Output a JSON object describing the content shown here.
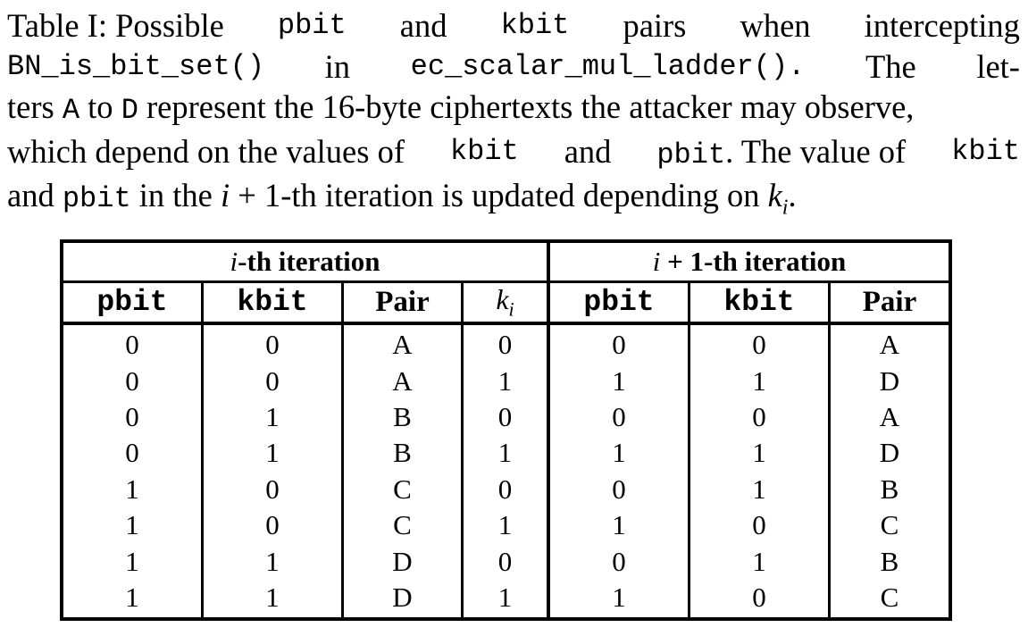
{
  "caption": {
    "label": "Table I:",
    "line1": {
      "w1": "Possible",
      "code1": "pbit",
      "w2": "and",
      "code2": "kbit",
      "w3": "pairs",
      "w4": "when",
      "w5": "intercepting"
    },
    "line2": {
      "code1": "BN_is_bit_set()",
      "w1": "in",
      "code2": "ec_scalar_mul_ladder().",
      "w2": "The",
      "w3": "let-"
    },
    "line3": {
      "t1": "ters",
      "code1": "A",
      "t2": "to",
      "code2": "D",
      "t3": "represent the 16-byte ciphertexts the attacker may observe,"
    },
    "line4": {
      "t1": "which depend on the values of",
      "code1": "kbit",
      "t2": "and",
      "code2": "pbit",
      "t3": ". The value of",
      "code3": "kbit"
    },
    "line5": {
      "t1": "and",
      "code1": "pbit",
      "t2": "in the",
      "math1": "i",
      "t3": "+ 1-th iteration is updated depending on",
      "math2": "k",
      "math2_sub": "i",
      "t4": "."
    }
  },
  "table": {
    "group_headers": [
      {
        "math": "i",
        "text": "-th iteration"
      },
      {
        "math": "i",
        "text": "+ 1-th iteration"
      }
    ],
    "columns": [
      "pbit",
      "kbit",
      "Pair",
      "k",
      "pbit",
      "kbit",
      "Pair"
    ],
    "ki_sub": "i",
    "rows": [
      [
        "0",
        "0",
        "A",
        "0",
        "0",
        "0",
        "A"
      ],
      [
        "0",
        "0",
        "A",
        "1",
        "1",
        "1",
        "D"
      ],
      [
        "0",
        "1",
        "B",
        "0",
        "0",
        "0",
        "A"
      ],
      [
        "0",
        "1",
        "B",
        "1",
        "1",
        "1",
        "D"
      ],
      [
        "1",
        "0",
        "C",
        "0",
        "0",
        "1",
        "B"
      ],
      [
        "1",
        "0",
        "C",
        "1",
        "1",
        "0",
        "C"
      ],
      [
        "1",
        "1",
        "D",
        "0",
        "0",
        "1",
        "B"
      ],
      [
        "1",
        "1",
        "D",
        "1",
        "1",
        "0",
        "C"
      ]
    ]
  }
}
